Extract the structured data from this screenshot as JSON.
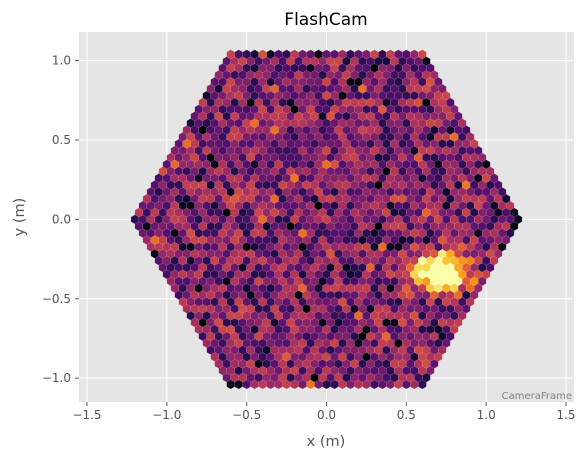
{
  "chart_data": {
    "type": "heatmap",
    "title": "FlashCam",
    "xlabel": "x  (m)",
    "ylabel": "y  (m)",
    "xlim": [
      -1.55,
      1.55
    ],
    "ylim": [
      -1.15,
      1.18
    ],
    "x_ticks": [
      -1.5,
      -1.0,
      -0.5,
      0.0,
      0.5,
      1.0,
      1.5
    ],
    "x_tick_labels": [
      "−1.5",
      "−1.0",
      "−0.5",
      "0.0",
      "0.5",
      "1.0",
      "1.5"
    ],
    "y_ticks": [
      -1.0,
      -0.5,
      0.0,
      0.5,
      1.0
    ],
    "y_tick_labels": [
      "−1.0",
      "−0.5",
      "0.0",
      "0.5",
      "1.0"
    ],
    "grid": true,
    "frame_label": "CameraFrame",
    "camera": {
      "geometry": "hexagonal pixel grid",
      "outer_half_width_x": 1.2,
      "outer_half_height_y": 1.05,
      "pixel_pitch": 0.05
    },
    "colormap": "inferno",
    "hotspot": {
      "x": 0.72,
      "y": -0.33,
      "radius": 0.13,
      "peak_value": 1.0
    },
    "background_level": 0.35,
    "colors": {
      "axes_background": "#e5e5e5",
      "grid": "#ffffff",
      "text": "#555555"
    }
  }
}
